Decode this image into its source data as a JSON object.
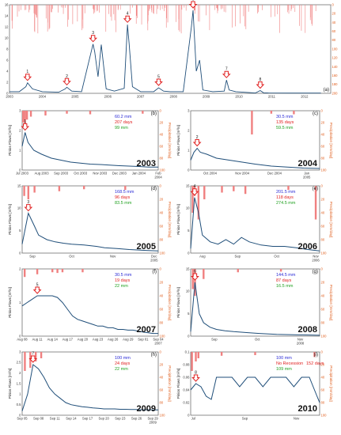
{
  "chart_data": [
    {
      "panel": "(a)",
      "type": "line",
      "ylabel": "",
      "y2label": "",
      "ylim": [
        0,
        16
      ],
      "y2lim": [
        0,
        200
      ],
      "y2_inverted": true,
      "x_ticks": [
        "2003",
        "2004",
        "2005",
        "2006",
        "2007",
        "2008",
        "2009",
        "2010",
        "2011",
        "2012"
      ],
      "y_ticks": [
        "0",
        "2",
        "4",
        "6",
        "8",
        "10",
        "12",
        "14",
        "16"
      ],
      "y2_ticks": [
        "0",
        "20",
        "40",
        "60",
        "80",
        "100",
        "120",
        "140",
        "160",
        "180",
        "200"
      ],
      "x": [
        2003.0,
        2003.3,
        2003.5,
        2003.55,
        2003.7,
        2004.0,
        2004.5,
        2004.7,
        2004.75,
        2004.9,
        2005.2,
        2005.55,
        2005.6,
        2005.7,
        2005.8,
        2005.95,
        2006.2,
        2006.5,
        2006.6,
        2006.65,
        2006.75,
        2007.0,
        2007.4,
        2007.55,
        2007.7,
        2007.9,
        2008.3,
        2008.55,
        2008.6,
        2008.7,
        2008.8,
        2008.9,
        2009.2,
        2009.55,
        2009.62,
        2009.7,
        2009.9,
        2010.5,
        2010.65,
        2010.75,
        2010.9,
        2011.5,
        2012.0,
        2012.5
      ],
      "values": [
        0.3,
        0.3,
        1.2,
        1.9,
        0.8,
        0.3,
        0.2,
        0.8,
        1.1,
        0.4,
        0.3,
        8.9,
        7.5,
        3.0,
        8.8,
        0.8,
        0.4,
        0.9,
        12.4,
        9.0,
        1.2,
        0.3,
        0.3,
        1.0,
        0.4,
        0.3,
        0.3,
        12.0,
        15.0,
        4.0,
        6.0,
        0.6,
        0.3,
        0.4,
        2.4,
        0.6,
        0.3,
        0.06,
        0.5,
        0.1,
        0.06,
        0.05,
        0.05,
        0.05
      ],
      "events": [
        {
          "label": "1",
          "x": 2003.55
        },
        {
          "label": "2",
          "x": 2004.75
        },
        {
          "label": "3",
          "x": 2005.55
        },
        {
          "label": "4",
          "x": 2006.6
        },
        {
          "label": "5",
          "x": 2007.55
        },
        {
          "label": "6",
          "x": 2008.6
        },
        {
          "label": "7",
          "x": 2009.62
        },
        {
          "label": "8",
          "x": 2010.65
        }
      ]
    },
    {
      "panel": "(b)",
      "type": "line",
      "year_label": "2003",
      "ylabel": "Pinios Flows [m³/s]",
      "y2label": "Precipitation [mm/day]",
      "ylim": [
        0,
        3
      ],
      "y_ticks": [
        "0",
        "1",
        "2",
        "3"
      ],
      "y2_ticks": [
        "0",
        "20",
        "40",
        "60",
        "80",
        "100"
      ],
      "x_ticks": [
        "Jul 2003",
        "Aug 2003",
        "Sep 2003",
        "Oct 2003",
        "Nov 2003",
        "Dec 2003",
        "Jan 2004",
        "Feb 2004"
      ],
      "x": [
        0,
        0.15,
        0.3,
        0.6,
        1.0,
        1.5,
        2.0,
        2.5,
        3.0,
        3.5,
        4.0,
        4.5,
        5.0,
        5.5,
        6.0,
        6.5,
        7.0
      ],
      "values": [
        1.2,
        1.9,
        1.4,
        1.0,
        0.8,
        0.6,
        0.5,
        0.4,
        0.35,
        0.3,
        0.28,
        0.25,
        0.22,
        0.2,
        0.18,
        0.15,
        0.15
      ],
      "precip_x": [
        0.05,
        0.15,
        0.25,
        0.45,
        1.2,
        2.3,
        3.5,
        6.2
      ],
      "precip_mm": [
        20,
        25,
        15,
        10,
        8,
        5,
        6,
        5
      ],
      "event": {
        "label": "1",
        "x": 0.15
      },
      "stats": [
        "60.2 mm",
        "207 days",
        "99 mm"
      ]
    },
    {
      "panel": "(c)",
      "type": "line",
      "year_label": "2004",
      "ylabel": "Pinios Flows [m³/s]",
      "y2label": "Precipitation [mm/day]",
      "ylim": [
        0,
        3
      ],
      "y_ticks": [
        "0",
        "1",
        "2",
        "3"
      ],
      "y2_ticks": [
        "0",
        "20",
        "40",
        "60",
        "80",
        "100"
      ],
      "x_ticks": [
        "Oct 2004",
        "Nov 2004",
        "Dec 2004",
        "Jan 2005"
      ],
      "x_tick_pos": [
        0.6,
        1.6,
        2.6,
        3.6
      ],
      "x": [
        0,
        0.1,
        0.2,
        0.3,
        0.5,
        0.8,
        1.2,
        1.6,
        2.0,
        2.5,
        3.0,
        3.5,
        4.0
      ],
      "values": [
        0.5,
        0.9,
        1.1,
        0.9,
        0.8,
        0.6,
        0.5,
        0.4,
        0.3,
        0.2,
        0.15,
        0.1,
        0.08
      ],
      "precip_x": [
        1.9,
        2.5,
        3.2
      ],
      "precip_mm": [
        40,
        5,
        6
      ],
      "event": {
        "label": "2",
        "x": 0.2
      },
      "stats": [
        "30.5 mm",
        "135 days",
        "59.5 mm"
      ]
    },
    {
      "panel": "(d)",
      "type": "line",
      "year_label": "2005",
      "ylabel": "Pinios Flows [m³/s]",
      "y2label": "Precipitation [mm/day]",
      "ylim": [
        0,
        15
      ],
      "y_ticks": [
        "0",
        "5",
        "10",
        "15"
      ],
      "y2_ticks": [
        "0",
        "20",
        "40",
        "60",
        "80",
        "100"
      ],
      "x_ticks": [
        "Sep",
        "Oct",
        "Nov",
        "Dec 2005"
      ],
      "x_tick_pos": [
        0.25,
        1.2,
        2.2,
        3.2
      ],
      "x": [
        0,
        0.15,
        0.3,
        0.4,
        0.6,
        0.8,
        1.0,
        1.2,
        1.5,
        1.8,
        2.0,
        2.3,
        2.6,
        3.0,
        3.3
      ],
      "values": [
        2.0,
        8.9,
        6.0,
        4.0,
        3.0,
        2.5,
        2.2,
        2.0,
        1.8,
        1.5,
        1.2,
        1.0,
        0.8,
        0.6,
        0.5
      ],
      "precip_x": [
        0.05,
        0.15,
        0.3,
        0.9,
        1.5,
        2.5
      ],
      "precip_mm": [
        15,
        20,
        10,
        8,
        5,
        6
      ],
      "event": {
        "label": "3",
        "x": 0.15
      },
      "stats": [
        "168.5 mm",
        "96 days",
        "83.5 mm"
      ]
    },
    {
      "panel": "(e)",
      "type": "line",
      "year_label": "2006",
      "ylabel": "Pinios Flows [m³/s]",
      "y2label": "Precipitation [mm/day]",
      "ylim": [
        0,
        15
      ],
      "y_ticks": [
        "0",
        "5",
        "10",
        "15"
      ],
      "y2_ticks": [
        "0",
        "20",
        "40",
        "60",
        "80",
        "100"
      ],
      "x_ticks": [
        "Aug",
        "Sep",
        "Oct",
        "Nov 2006"
      ],
      "x_tick_pos": [
        0.3,
        1.2,
        2.2,
        3.2
      ],
      "x": [
        0,
        0.1,
        0.2,
        0.3,
        0.5,
        0.7,
        0.9,
        1.1,
        1.3,
        1.5,
        1.8,
        2.1,
        2.4,
        2.7,
        3.0,
        3.3
      ],
      "values": [
        1.0,
        12.4,
        9.0,
        4.0,
        2.5,
        2.0,
        3.0,
        2.0,
        3.5,
        2.5,
        1.8,
        1.5,
        1.5,
        1.2,
        0.8,
        0.5
      ],
      "precip_x": [
        0.05,
        0.1,
        0.2,
        0.35,
        0.8,
        1.1,
        1.4,
        2.5,
        3.2
      ],
      "precip_mm": [
        40,
        15,
        50,
        20,
        10,
        8,
        12,
        6,
        50
      ],
      "event": {
        "label": "4",
        "x": 0.1
      },
      "stats": [
        "201.5 mm",
        "118 days",
        "274.5 mm"
      ]
    },
    {
      "panel": "(f)",
      "type": "line",
      "year_label": "2007",
      "ylabel": "Pinios Flows [m³/s]",
      "y2label": "Precipitation [mm/day]",
      "ylim": [
        0,
        2
      ],
      "y_ticks": [
        "0",
        "1",
        "2"
      ],
      "y2_ticks": [
        "0",
        "20",
        "40",
        "60",
        "80",
        "100"
      ],
      "x_ticks": [
        "Aug 08",
        "Aug 11",
        "Aug 14",
        "Aug 17",
        "Aug 20",
        "Aug 23",
        "Aug 26",
        "Aug 29",
        "Sep 01",
        "Sep 04 2007"
      ],
      "x_tick_pos": [
        0,
        3,
        6,
        9,
        12,
        15,
        18,
        21,
        24,
        27
      ],
      "x": [
        0,
        1,
        2,
        3,
        4,
        5,
        6,
        7,
        8,
        9,
        10,
        11,
        12,
        13,
        14,
        15,
        16,
        17,
        18,
        19,
        20,
        21,
        22,
        23,
        24,
        25,
        26,
        27
      ],
      "values": [
        0.9,
        1.0,
        1.1,
        1.2,
        1.2,
        1.2,
        1.2,
        1.15,
        1.0,
        0.8,
        0.6,
        0.5,
        0.45,
        0.4,
        0.35,
        0.3,
        0.3,
        0.25,
        0.25,
        0.2,
        0.2,
        0.18,
        0.18,
        0.15,
        0.12,
        0.1,
        0.08,
        0.08
      ],
      "precip_x": [
        0.5,
        3,
        6,
        7,
        8,
        12
      ],
      "precip_mm": [
        12,
        8,
        5,
        6,
        5,
        5
      ],
      "event": {
        "label": "5",
        "x": 3
      },
      "stats": [
        "30.5 mm",
        "19 days",
        "22 mm"
      ]
    },
    {
      "panel": "(g)",
      "type": "line",
      "year_label": "2008",
      "ylabel": "Pinios Flows [m³/s]",
      "y2label": "Precipitation [mm/day]",
      "ylim": [
        0,
        15
      ],
      "y_ticks": [
        "0",
        "5",
        "10",
        "15"
      ],
      "y2_ticks": [
        "0",
        "20",
        "40",
        "60",
        "80",
        "100"
      ],
      "x_ticks": [
        "Sep",
        "Oct",
        "Nov 2008"
      ],
      "x_tick_pos": [
        0.55,
        1.55,
        2.55
      ],
      "x": [
        0,
        0.1,
        0.2,
        0.3,
        0.45,
        0.6,
        0.8,
        1.0,
        1.3,
        1.6,
        2.0,
        2.4,
        2.8,
        3.0
      ],
      "values": [
        1.0,
        12.0,
        5.0,
        3.0,
        2.0,
        1.5,
        1.2,
        1.0,
        0.8,
        0.6,
        0.4,
        0.3,
        0.25,
        0.2
      ],
      "precip_x": [
        0.05,
        0.1,
        0.3,
        1.1,
        2.1
      ],
      "precip_mm": [
        30,
        40,
        15,
        5,
        4
      ],
      "event": {
        "label": "6",
        "x": 0.1
      },
      "stats": [
        "144.5 mm",
        "87 days",
        "16.5 mm"
      ]
    },
    {
      "panel": "(h)",
      "type": "line",
      "year_label": "2009",
      "ylabel": "Pinios Flows [m³/s]",
      "y2label": "Precipitation [mm/day]",
      "ylim": [
        0,
        3
      ],
      "y_ticks": [
        "0",
        "0.5",
        "1",
        "1.5",
        "2",
        "2.5",
        "3"
      ],
      "y2_ticks": [
        "0",
        "20",
        "40",
        "60",
        "80",
        "100"
      ],
      "x_ticks": [
        "Sep 05",
        "Sep 08",
        "Sep 11",
        "Sep 14",
        "Sep 17",
        "Sep 20",
        "Sep 23",
        "Sep 26",
        "Sep 29 2009"
      ],
      "x_tick_pos": [
        0,
        3,
        6,
        9,
        12,
        15,
        18,
        21,
        24
      ],
      "x": [
        0,
        1,
        2,
        3,
        4,
        5,
        6,
        7,
        8,
        9,
        10,
        11,
        12,
        13,
        14,
        15,
        16,
        17,
        18,
        19,
        20,
        21,
        22,
        23,
        24,
        25
      ],
      "values": [
        0.2,
        1.0,
        2.4,
        2.2,
        1.8,
        1.3,
        1.0,
        0.8,
        0.6,
        0.5,
        0.45,
        0.4,
        0.38,
        0.35,
        0.33,
        0.3,
        0.3,
        0.3,
        0.28,
        0.28,
        0.27,
        0.27,
        0.26,
        0.26,
        0.25,
        0.25
      ],
      "precip_x": [
        0.5,
        1.5,
        2.5,
        3.5
      ],
      "precip_mm": [
        30,
        25,
        15,
        10
      ],
      "event": {
        "label": "7",
        "x": 2
      },
      "stats": [
        "100 mm",
        "24 days",
        "22 mm"
      ]
    },
    {
      "panel": "(i)",
      "type": "line",
      "year_label": "2010",
      "ylabel": "Pinios Flows [m³/s]",
      "y2label": "Precipitation [mm/day]",
      "ylim": [
        0,
        0.1
      ],
      "y_ticks": [
        "0",
        "0.02",
        "0.04",
        "0.06",
        "0.08",
        "0.1"
      ],
      "y2_ticks": [
        "0",
        "20",
        "40",
        "60",
        "80",
        "100"
      ],
      "x_ticks": [
        "Jul",
        "Sep",
        "Nov"
      ],
      "x_tick_pos": [
        0.1,
        2.1,
        4.1
      ],
      "x": [
        0,
        0.2,
        0.4,
        0.6,
        0.8,
        1.0,
        1.3,
        1.6,
        1.9,
        2.2,
        2.5,
        2.8,
        3.1,
        3.4,
        3.7,
        4.0,
        4.3,
        4.6,
        4.9,
        5.0
      ],
      "values": [
        0.04,
        0.05,
        0.045,
        0.03,
        0.025,
        0.06,
        0.06,
        0.06,
        0.045,
        0.06,
        0.06,
        0.045,
        0.06,
        0.06,
        0.06,
        0.045,
        0.06,
        0.06,
        0.03,
        0.02
      ],
      "precip_x": [
        0.05,
        0.2,
        0.3,
        1.2,
        2.5,
        4.8
      ],
      "precip_mm": [
        30,
        15,
        10,
        6,
        5,
        8
      ],
      "event": {
        "label": "8",
        "x": 0.2
      },
      "stats": [
        "100 mm",
        "152 days",
        "109 mm"
      ],
      "stats_note": "No Recession"
    }
  ],
  "colors": {
    "flow": "#1f4e79",
    "precip": "#f08080",
    "arrow": "#e02020",
    "stat1": "#2b2bd6",
    "stat2": "#e02020",
    "stat3": "#20a020",
    "axis2": "#e06020"
  }
}
